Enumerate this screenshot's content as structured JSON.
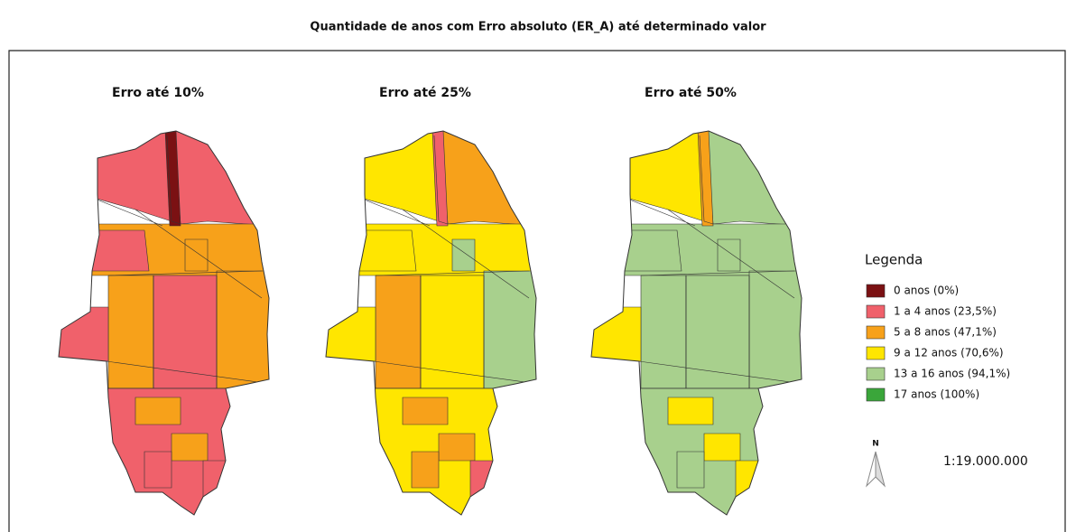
{
  "title": "Quantidade de anos com Erro absoluto (ER_A) até determinado valor",
  "maps": [
    {
      "title": "Erro até 10%"
    },
    {
      "title": "Erro até 25%"
    },
    {
      "title": "Erro até 50%"
    }
  ],
  "legend": {
    "title": "Legenda",
    "items": [
      {
        "label": "0 anos (0%)",
        "color": "#7b1113"
      },
      {
        "label": "1 a 4 anos (23,5%)",
        "color": "#f0616b"
      },
      {
        "label": "5 a 8 anos (47,1%)",
        "color": "#f7a11a"
      },
      {
        "label": "9 a 12 anos (70,6%)",
        "color": "#ffe600"
      },
      {
        "label": "13 a 16 anos (94,1%)",
        "color": "#a8d08d"
      },
      {
        "label": "17 anos (100%)",
        "color": "#3aa63a"
      }
    ]
  },
  "north": "N",
  "scale": "1:19.000.000"
}
